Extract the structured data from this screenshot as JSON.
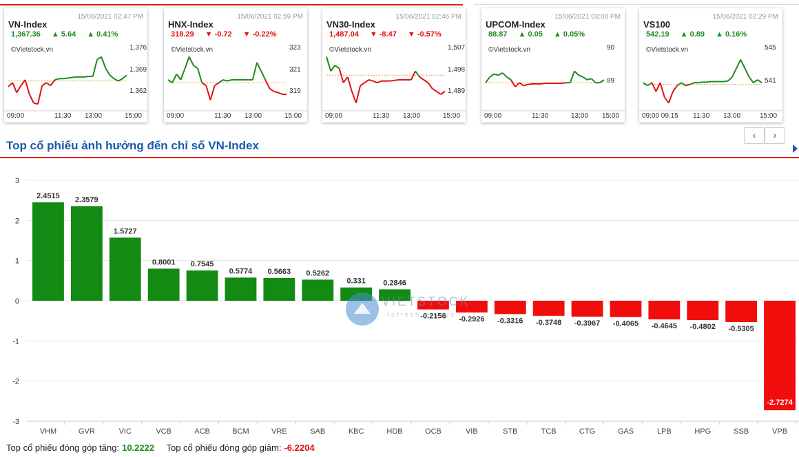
{
  "mini_cards": [
    {
      "name": "VN-Index",
      "date": "15/06/2021 02:47 PM",
      "value": "1,367.36",
      "change": "5.64",
      "pct": "0.41%",
      "dir": "up",
      "source": "©Vietstock.vn",
      "yticks": [
        "1,376",
        "1,369",
        "1,362"
      ],
      "xticks": [
        "09:00",
        "11:30",
        "13:00",
        "15:00"
      ]
    },
    {
      "name": "HNX-Index",
      "date": "15/06/2021 02:59 PM",
      "value": "318.29",
      "change": "-0.72",
      "pct": "-0.22%",
      "dir": "down",
      "source": "©Vietstock.vn",
      "yticks": [
        "323",
        "321",
        "319"
      ],
      "xticks": [
        "09:00",
        "11:30",
        "13:00",
        "15:00"
      ]
    },
    {
      "name": "VN30-Index",
      "date": "15/06/2021 02:46 PM",
      "value": "1,487.04",
      "change": "-8.47",
      "pct": "-0.57%",
      "dir": "down",
      "source": "©Vietstock.vn",
      "yticks": [
        "1,507",
        "1,498",
        "1,489"
      ],
      "xticks": [
        "09:00",
        "11:30",
        "13:00",
        "15:00"
      ]
    },
    {
      "name": "UPCOM-Index",
      "date": "15/06/2021 03:00 PM",
      "value": "88.87",
      "change": "0.05",
      "pct": "0.05%",
      "dir": "up",
      "source": "©Vietstock.vn",
      "yticks": [
        "90",
        "89"
      ],
      "xticks": [
        "09:00",
        "11:30",
        "13:00",
        "15:00"
      ]
    },
    {
      "name": "VS100",
      "date": "15/06/2021 02:29 PM",
      "value": "542.19",
      "change": "0.89",
      "pct": "0.16%",
      "dir": "up",
      "source": "©Vietstock.vn",
      "yticks": [
        "545",
        "541"
      ],
      "xticks": [
        "09:00 09:15",
        "11:30",
        "13:00",
        "15:00"
      ]
    }
  ],
  "nav": {
    "prev": "‹",
    "next": "›"
  },
  "section_title": "Top cổ phiếu ảnh hưởng đến chỉ số VN-Index",
  "watermark": {
    "text": "VIETSTOCK",
    "tagline": "refresh always"
  },
  "chart_data": {
    "type": "bar",
    "categories": [
      "VHM",
      "GVR",
      "VIC",
      "VCB",
      "ACB",
      "BCM",
      "VRE",
      "SAB",
      "KBC",
      "HDB",
      "OCB",
      "VIB",
      "STB",
      "TCB",
      "CTG",
      "GAS",
      "LPB",
      "HPG",
      "SSB",
      "VPB"
    ],
    "values": [
      2.4515,
      2.3579,
      1.5727,
      0.8001,
      0.7545,
      0.5774,
      0.5663,
      0.5262,
      0.331,
      0.2846,
      -0.2156,
      -0.2926,
      -0.3316,
      -0.3748,
      -0.3967,
      -0.4065,
      -0.4645,
      -0.4802,
      -0.5305,
      -2.7274
    ],
    "value_labels": [
      "2.4515",
      "2.3579",
      "1.5727",
      "0.8001",
      "0.7545",
      "0.5774",
      "0.5663",
      "0.5262",
      "0.331",
      "0.2846",
      "-0.2156",
      "-0.2926",
      "-0.3316",
      "-0.3748",
      "-0.3967",
      "-0.4065",
      "-0.4645",
      "-0.4802",
      "-0.5305",
      "-2.7274"
    ],
    "ylim": [
      -3,
      3
    ],
    "yticks": [
      "3",
      "2",
      "1",
      "0",
      "-1",
      "-2",
      "-3"
    ],
    "grid": true,
    "colors": {
      "positive": "#138a13",
      "negative": "#f20d0d"
    }
  },
  "footer": {
    "up_label": "Top cổ phiếu đóng góp tăng:",
    "up_value": "10.2222",
    "down_label": "Top cổ phiếu đóng góp giảm:",
    "down_value": "-6.2204"
  }
}
